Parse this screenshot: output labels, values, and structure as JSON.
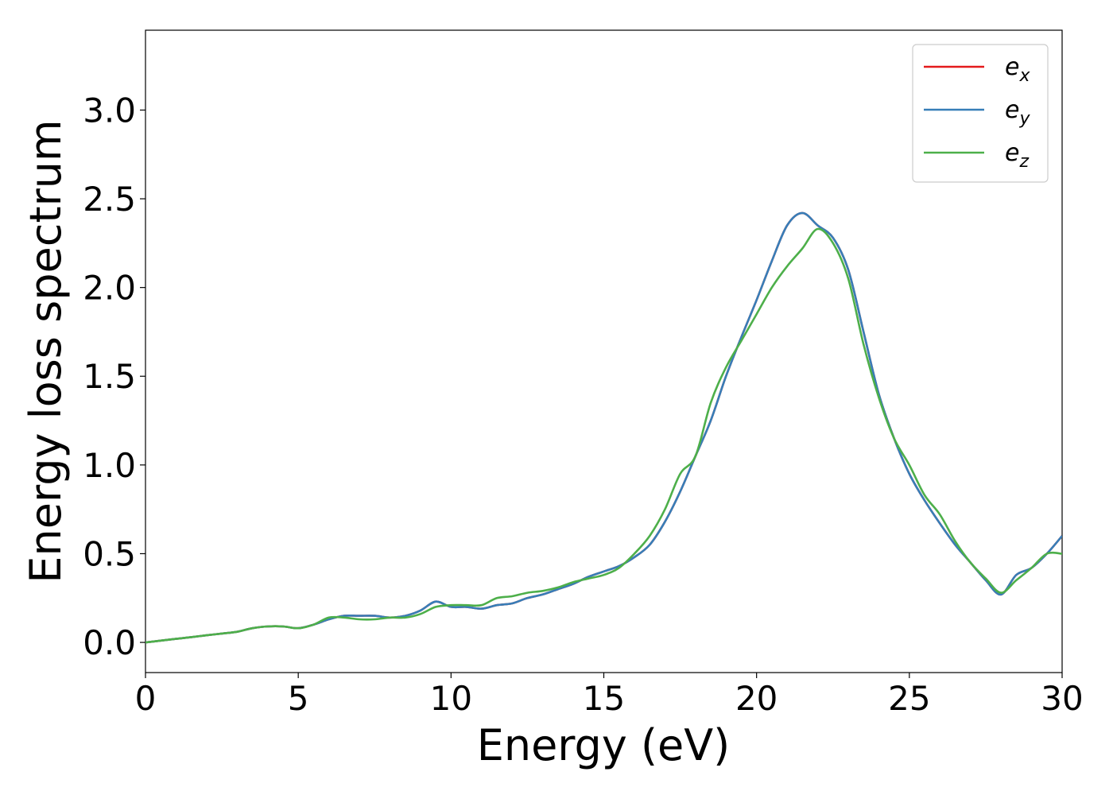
{
  "chart_data": {
    "type": "line",
    "xlabel": "Energy (eV)",
    "ylabel": "Energy loss spectrum",
    "xlim": [
      0,
      30
    ],
    "ylim": [
      -0.17,
      3.45
    ],
    "xticks": [
      "0",
      "5",
      "10",
      "15",
      "20",
      "25",
      "30"
    ],
    "yticks": [
      "0.0",
      "0.5",
      "1.0",
      "1.5",
      "2.0",
      "2.5",
      "3.0"
    ],
    "grid": false,
    "legend_position": "top-right",
    "x": [
      0,
      0.5,
      1,
      1.5,
      2,
      2.5,
      3,
      3.5,
      4,
      4.5,
      5,
      5.5,
      6,
      6.5,
      7,
      7.5,
      8,
      8.5,
      9,
      9.5,
      10,
      10.5,
      11,
      11.5,
      12,
      12.5,
      13,
      13.5,
      14,
      14.5,
      15,
      15.5,
      16,
      16.5,
      17,
      17.5,
      18,
      18.5,
      19,
      19.5,
      20,
      20.5,
      21,
      21.5,
      22,
      22.5,
      23,
      23.5,
      24,
      24.5,
      25,
      25.5,
      26,
      26.5,
      27,
      27.5,
      28,
      28.5,
      29,
      29.5,
      30
    ],
    "series": [
      {
        "name": "e",
        "subscript": "x",
        "color": "#e41a1c",
        "values": [
          0.0,
          0.01,
          0.02,
          0.03,
          0.04,
          0.05,
          0.06,
          0.08,
          0.09,
          0.09,
          0.08,
          0.1,
          0.13,
          0.15,
          0.15,
          0.15,
          0.14,
          0.15,
          0.18,
          0.23,
          0.2,
          0.2,
          0.19,
          0.21,
          0.22,
          0.25,
          0.27,
          0.3,
          0.33,
          0.37,
          0.4,
          0.43,
          0.48,
          0.55,
          0.68,
          0.85,
          1.05,
          1.25,
          1.5,
          1.72,
          1.93,
          2.15,
          2.35,
          2.42,
          2.35,
          2.28,
          2.1,
          1.75,
          1.4,
          1.15,
          0.95,
          0.8,
          0.67,
          0.55,
          0.45,
          0.35,
          0.27,
          0.38,
          0.42,
          0.5,
          0.6
        ]
      },
      {
        "name": "e",
        "subscript": "y",
        "color": "#377eb8",
        "values": [
          0.0,
          0.01,
          0.02,
          0.03,
          0.04,
          0.05,
          0.06,
          0.08,
          0.09,
          0.09,
          0.08,
          0.1,
          0.13,
          0.15,
          0.15,
          0.15,
          0.14,
          0.15,
          0.18,
          0.23,
          0.2,
          0.2,
          0.19,
          0.21,
          0.22,
          0.25,
          0.27,
          0.3,
          0.33,
          0.37,
          0.4,
          0.43,
          0.48,
          0.55,
          0.68,
          0.85,
          1.05,
          1.25,
          1.5,
          1.72,
          1.93,
          2.15,
          2.35,
          2.42,
          2.35,
          2.28,
          2.1,
          1.75,
          1.4,
          1.15,
          0.95,
          0.8,
          0.67,
          0.55,
          0.45,
          0.35,
          0.27,
          0.38,
          0.42,
          0.5,
          0.6
        ]
      },
      {
        "name": "e",
        "subscript": "z",
        "color": "#4daf4a",
        "values": [
          0.0,
          0.01,
          0.02,
          0.03,
          0.04,
          0.05,
          0.06,
          0.08,
          0.09,
          0.09,
          0.08,
          0.1,
          0.14,
          0.14,
          0.13,
          0.13,
          0.14,
          0.14,
          0.16,
          0.2,
          0.21,
          0.21,
          0.21,
          0.25,
          0.26,
          0.28,
          0.29,
          0.31,
          0.34,
          0.36,
          0.38,
          0.42,
          0.5,
          0.6,
          0.75,
          0.95,
          1.05,
          1.35,
          1.55,
          1.7,
          1.85,
          2.0,
          2.12,
          2.22,
          2.33,
          2.25,
          2.05,
          1.68,
          1.38,
          1.15,
          1.0,
          0.83,
          0.72,
          0.57,
          0.45,
          0.36,
          0.28,
          0.35,
          0.42,
          0.5,
          0.5
        ]
      }
    ]
  }
}
